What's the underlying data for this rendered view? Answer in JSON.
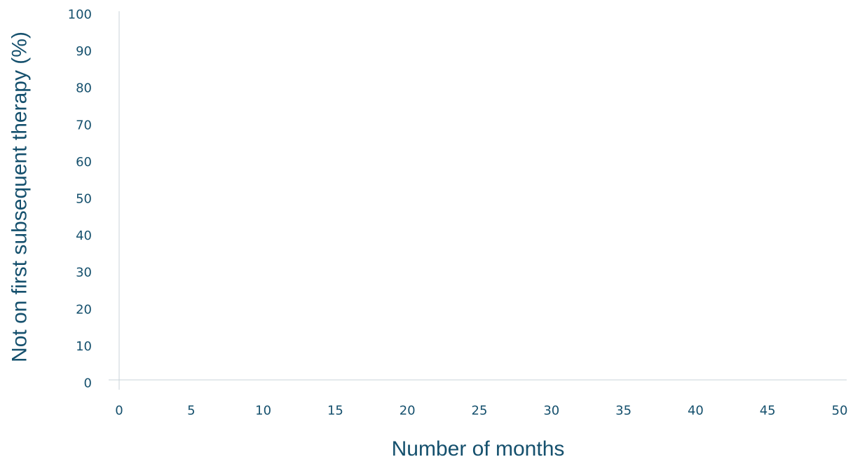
{
  "chart_data": {
    "type": "line",
    "title": "",
    "xlabel": "Number of months",
    "ylabel": "Not on first subsequent therapy (%)",
    "xlim": [
      0,
      50
    ],
    "ylim": [
      0,
      100
    ],
    "x_ticks": [
      "0",
      "5",
      "10",
      "15",
      "20",
      "25",
      "30",
      "35",
      "40",
      "45",
      "50"
    ],
    "y_ticks": [
      "0",
      "10",
      "20",
      "30",
      "40",
      "50",
      "60",
      "70",
      "80",
      "90",
      "100"
    ],
    "grid": false,
    "legend": "none",
    "series": [],
    "colors": {
      "text": "#15506d",
      "axis": "#c9d3da"
    }
  }
}
